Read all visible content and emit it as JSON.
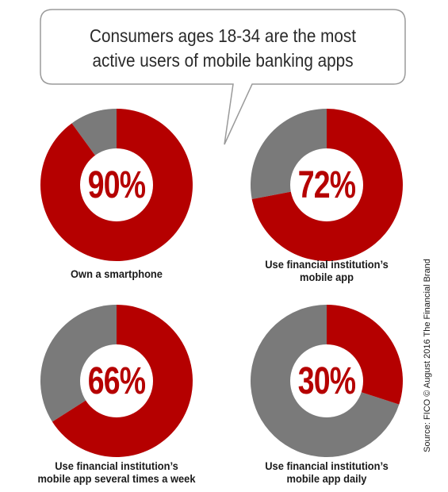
{
  "headline": {
    "line1": "Consumers ages 18-34 are the most",
    "line2": "active users of mobile banking apps"
  },
  "chart_data": [
    {
      "type": "pie",
      "hole": true,
      "value": 90,
      "remainder": 10,
      "label": "90%",
      "caption": [
        "Own a smartphone"
      ]
    },
    {
      "type": "pie",
      "hole": true,
      "value": 72,
      "remainder": 28,
      "label": "72%",
      "caption": [
        "Use financial institution’s",
        "mobile app"
      ]
    },
    {
      "type": "pie",
      "hole": true,
      "value": 66,
      "remainder": 34,
      "label": "66%",
      "caption": [
        "Use financial institution’s",
        "mobile app several times a week"
      ]
    },
    {
      "type": "pie",
      "hole": true,
      "value": 30,
      "remainder": 70,
      "label": "30%",
      "caption": [
        "Use financial institution’s",
        "mobile app daily"
      ]
    }
  ],
  "colors": {
    "value": "#b50000",
    "remainder": "#7a7a7a",
    "text": "#b50000"
  },
  "source": "Source: FICO © August 2016 The Financial Brand"
}
